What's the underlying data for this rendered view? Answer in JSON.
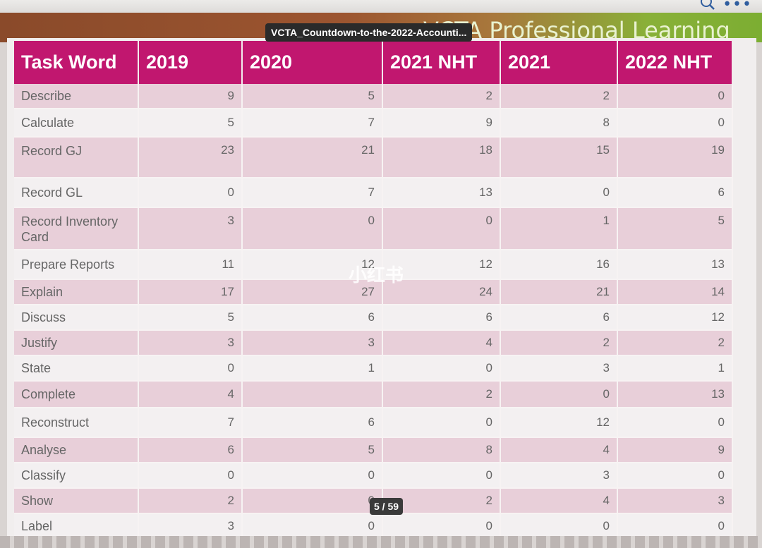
{
  "viewer": {
    "file_title": "VCTA_Countdown-to-the-2022-Accounti...",
    "page_indicator": "5 / 59",
    "search_icon": "search-icon",
    "more_icon": "more-options-icon"
  },
  "slide": {
    "banner_title": "VCTA Professional Learning",
    "watermark": "小红书",
    "table": {
      "headers": [
        "Task Word",
        "2019",
        "2020",
        "2021 NHT",
        "2021",
        "2022 NHT"
      ],
      "rows": [
        {
          "word": "Describe",
          "values": [
            "9",
            "5",
            "2",
            "2",
            "0"
          ]
        },
        {
          "word": "Calculate",
          "values": [
            "5",
            "7",
            "9",
            "8",
            "0"
          ]
        },
        {
          "word": "Record GJ",
          "values": [
            "23",
            "21",
            "18",
            "15",
            "19"
          ]
        },
        {
          "word": "Record GL",
          "values": [
            "0",
            "7",
            "13",
            "0",
            "6"
          ]
        },
        {
          "word": "Record Inventory Card",
          "values": [
            "3",
            "0",
            "0",
            "1",
            "5"
          ]
        },
        {
          "word": "Prepare Reports",
          "values": [
            "11",
            "12",
            "12",
            "16",
            "13"
          ]
        },
        {
          "word": "Explain",
          "values": [
            "17",
            "27",
            "24",
            "21",
            "14"
          ]
        },
        {
          "word": "Discuss",
          "values": [
            "5",
            "6",
            "6",
            "6",
            "12"
          ]
        },
        {
          "word": "Justify",
          "values": [
            "3",
            "3",
            "4",
            "2",
            "2"
          ]
        },
        {
          "word": "State",
          "values": [
            "0",
            "1",
            "0",
            "3",
            "1"
          ]
        },
        {
          "word": "Complete",
          "values": [
            "4",
            "",
            "2",
            "0",
            "13"
          ]
        },
        {
          "word": "Reconstruct",
          "values": [
            "7",
            "6",
            "0",
            "12",
            "0"
          ]
        },
        {
          "word": "Analyse",
          "values": [
            "6",
            "5",
            "8",
            "4",
            "9"
          ]
        },
        {
          "word": "Classify",
          "values": [
            "0",
            "0",
            "0",
            "3",
            "0"
          ]
        },
        {
          "word": "Show",
          "values": [
            "2",
            "0",
            "2",
            "4",
            "3"
          ]
        },
        {
          "word": "Label",
          "values": [
            "3",
            "0",
            "0",
            "0",
            "0"
          ]
        }
      ]
    }
  }
}
